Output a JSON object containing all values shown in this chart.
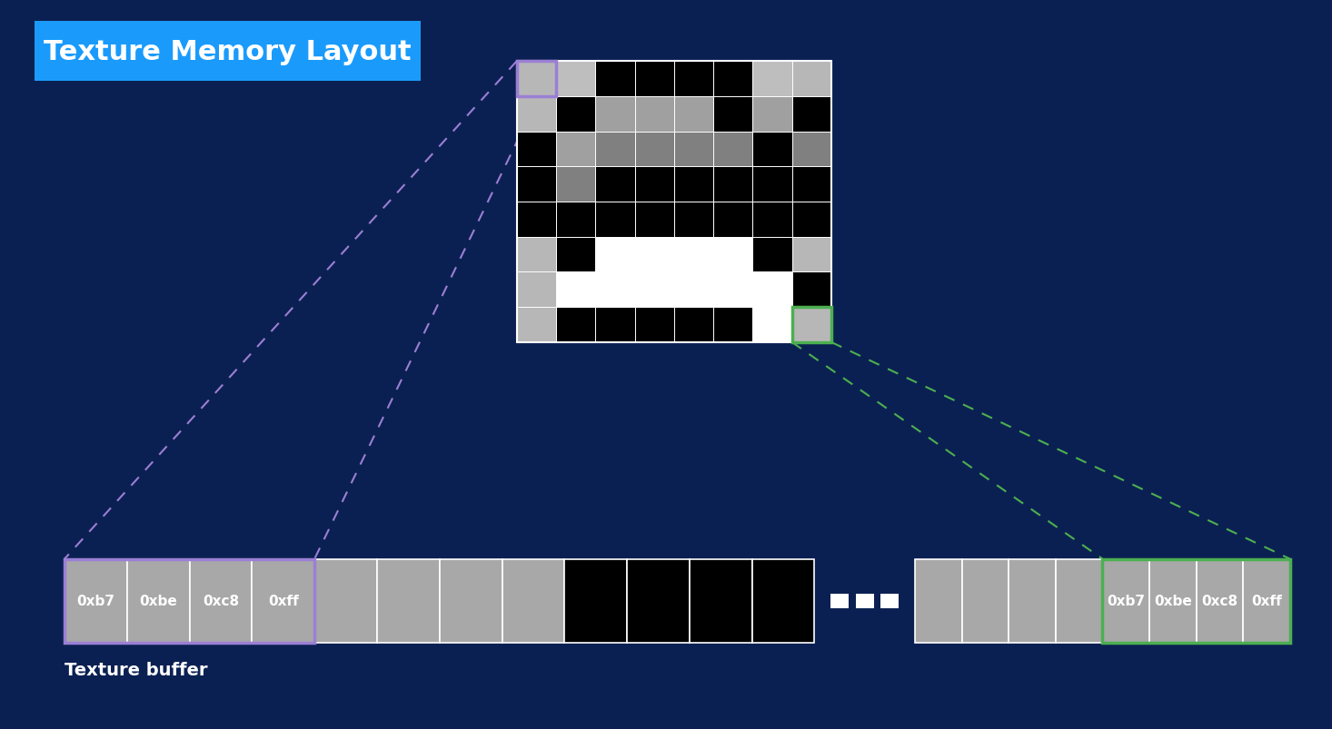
{
  "bg_color": "#0b2052",
  "title": "Texture Memory Layout",
  "title_bg": "#1a9bfc",
  "title_color": "white",
  "title_fontsize": 22,
  "sprite_grid": [
    [
      183,
      190,
      0,
      0,
      0,
      0,
      190,
      183
    ],
    [
      183,
      0,
      160,
      160,
      160,
      0,
      160,
      0
    ],
    [
      0,
      160,
      128,
      128,
      128,
      128,
      0,
      128
    ],
    [
      0,
      128,
      0,
      0,
      0,
      0,
      0,
      0
    ],
    [
      0,
      0,
      0,
      0,
      0,
      0,
      0,
      0
    ],
    [
      183,
      0,
      255,
      255,
      255,
      255,
      0,
      183
    ],
    [
      183,
      255,
      255,
      255,
      255,
      255,
      255,
      0
    ],
    [
      183,
      0,
      0,
      0,
      0,
      0,
      255,
      183
    ]
  ],
  "corner_tl_color": "#9b7fd4",
  "corner_br_color": "#4caf50",
  "buf_labeled_left": [
    "0xb7",
    "0xbe",
    "0xc8",
    "0xff"
  ],
  "buf_labeled_right": [
    "0xb7",
    "0xbe",
    "0xc8",
    "0xff"
  ],
  "buf_label": "Texture buffer",
  "line_color_left": "#9b7fd4",
  "line_color_right": "#4caf50"
}
